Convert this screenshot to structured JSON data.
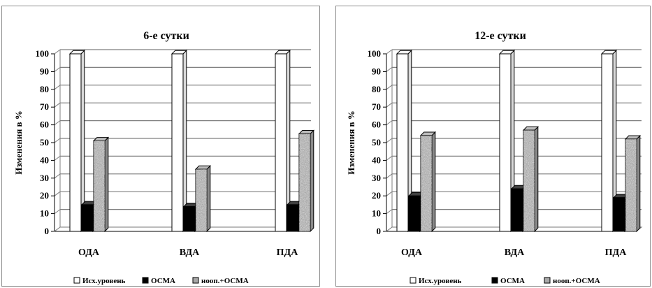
{
  "chart_data": [
    {
      "type": "bar",
      "title": "6-е сутки",
      "ylabel": "Изменения в %",
      "xlabel": "",
      "categories": [
        "ОДА",
        "ВДА",
        "ПДА"
      ],
      "ylim": [
        0,
        100
      ],
      "yticks": [
        0,
        10,
        20,
        30,
        40,
        50,
        60,
        70,
        80,
        90,
        100
      ],
      "grid": true,
      "legend_position": "bottom",
      "series": [
        {
          "name": "Исх.уровень",
          "values": [
            100,
            100,
            100
          ],
          "fill": "white"
        },
        {
          "name": "ОСМА",
          "values": [
            15,
            14,
            15
          ],
          "fill": "black"
        },
        {
          "name": "ноoп.+ОСМА",
          "values": [
            51,
            35,
            55
          ],
          "fill": "speckled-gray"
        }
      ]
    },
    {
      "type": "bar",
      "title": "12-е сутки",
      "ylabel": "Изменения в %",
      "xlabel": "",
      "categories": [
        "ОДА",
        "ВДА",
        "ПДА"
      ],
      "ylim": [
        0,
        100
      ],
      "yticks": [
        0,
        10,
        20,
        30,
        40,
        50,
        60,
        70,
        80,
        90,
        100
      ],
      "grid": true,
      "legend_position": "bottom",
      "series": [
        {
          "name": "Исх.уровень",
          "values": [
            100,
            100,
            100
          ],
          "fill": "white"
        },
        {
          "name": "ОСМА",
          "values": [
            20,
            24,
            19
          ],
          "fill": "black"
        },
        {
          "name": "нооп.+ОСМА",
          "values": [
            54,
            57,
            52
          ],
          "fill": "speckled-gray"
        }
      ]
    }
  ],
  "colors": {
    "outline": "#000000",
    "grid": "#7f7f7f",
    "white_bar": "#ffffff",
    "black_bar": "#000000",
    "speckle_base": "#a8a8a8",
    "panel_border": "#8c8c8c"
  }
}
